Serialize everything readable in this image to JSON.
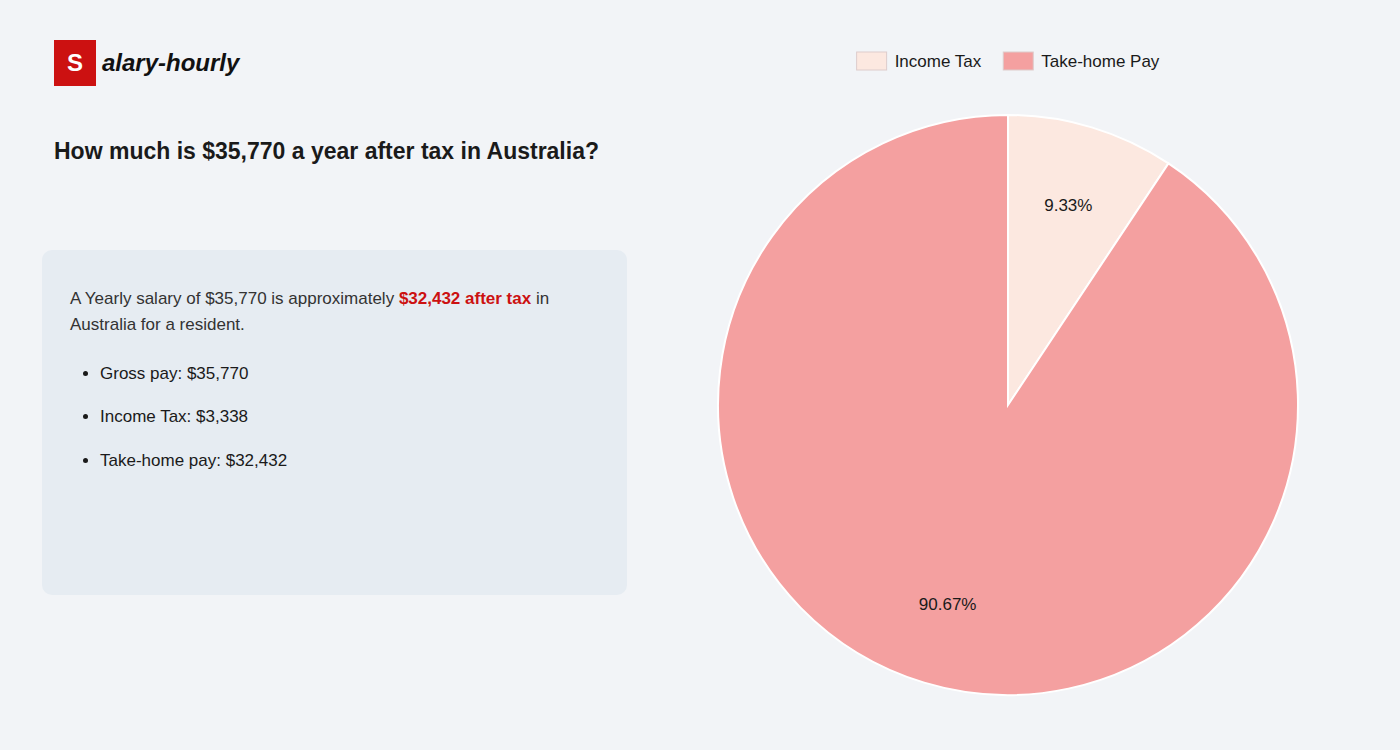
{
  "chart_data": {
    "type": "pie",
    "title": "How much is $35,770 a year after tax in Australia?",
    "categories": [
      "Income Tax",
      "Take-home Pay"
    ],
    "values": [
      9.33,
      90.67
    ],
    "value_labels": [
      "9.33%",
      "90.67%"
    ],
    "colors": [
      "#fce8e0",
      "#f4a0a0"
    ],
    "data_labels": true,
    "legend": "top",
    "annotations": [
      {
        "text": "S",
        "color": "#cc1111"
      },
      {
        "text": "alary-hourly"
      },
      {
        "text": "A Yearly salary of $35,770 is approximately "
      },
      {
        "text": "$32,432 after tax",
        "color": "#cc1111"
      },
      {
        "text": " in"
      },
      {
        "text": "Australia for a resident."
      },
      {
        "text": "Gross pay: $35,770"
      },
      {
        "text": "Income Tax: $3,338"
      },
      {
        "text": "Take-home pay: $32,432"
      }
    ]
  }
}
